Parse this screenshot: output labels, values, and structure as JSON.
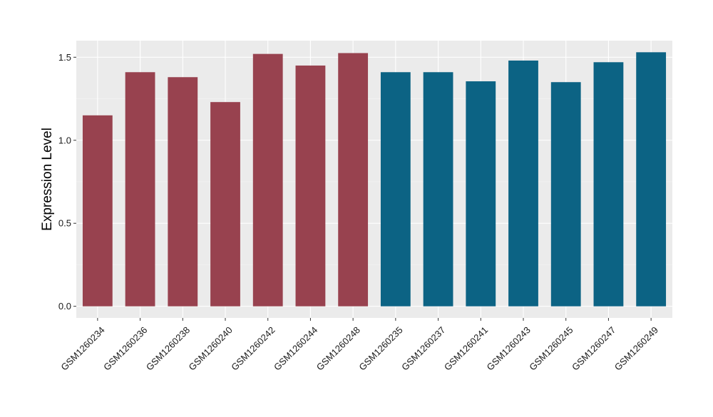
{
  "chart_data": {
    "type": "bar",
    "ylabel": "Expression Level",
    "xlabel": "",
    "title": "",
    "ylim": [
      -0.07,
      1.6
    ],
    "y_ticks": [
      0.0,
      0.5,
      1.0,
      1.5
    ],
    "y_tick_labels": [
      "0.0",
      "0.5",
      "1.0",
      "1.5"
    ],
    "grid": true,
    "legend": "none",
    "categories": [
      "GSM1260234",
      "GSM1260236",
      "GSM1260238",
      "GSM1260240",
      "GSM1260242",
      "GSM1260244",
      "GSM1260248",
      "GSM1260235",
      "GSM1260237",
      "GSM1260241",
      "GSM1260243",
      "GSM1260245",
      "GSM1260247",
      "GSM1260249"
    ],
    "values": [
      1.15,
      1.41,
      1.38,
      1.23,
      1.52,
      1.45,
      1.525,
      1.41,
      1.41,
      1.355,
      1.48,
      1.35,
      1.47,
      1.53
    ],
    "bar_groups": [
      "group1",
      "group1",
      "group1",
      "group1",
      "group1",
      "group1",
      "group1",
      "group2",
      "group2",
      "group2",
      "group2",
      "group2",
      "group2",
      "group2"
    ],
    "group_colors": {
      "group1": "#98424F",
      "group2": "#0C6384"
    },
    "panel_background": "#EBEBEB",
    "page_background": "#FFFFFF"
  }
}
